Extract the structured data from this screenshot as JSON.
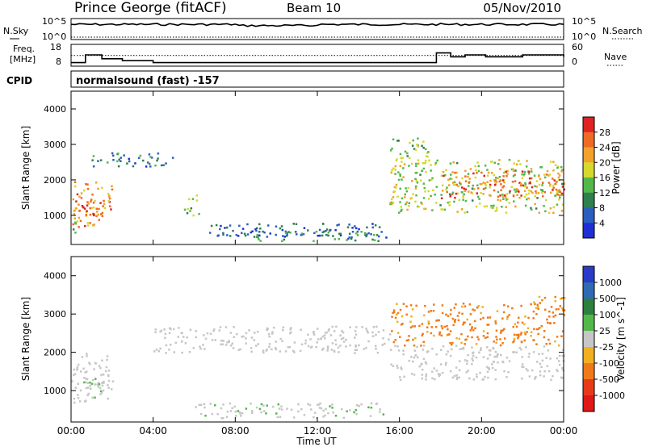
{
  "header": {
    "station": "Prince George (fitACF)",
    "beam": "Beam 10",
    "date": "05/Nov/2010"
  },
  "status_panels": {
    "nsky_label": "N.Sky",
    "nsky_ticks": [
      "10^5",
      "10^0"
    ],
    "nsearch_label": "N.Search",
    "nsearch_ticks": [
      "10^5",
      "10^0"
    ],
    "freq_label_1": "Freq.",
    "freq_label_2": "[MHz]",
    "freq_ticks": [
      "18",
      "8"
    ],
    "nave_label": "Nave",
    "nave_ticks": [
      "60",
      "0"
    ],
    "cpid_label": "CPID",
    "cpid_value": "normalsound (fast) -157"
  },
  "colors": {
    "power_scale": [
      "#1f2fd6",
      "#2b5fbf",
      "#2f7f4f",
      "#52b948",
      "#d7d82c",
      "#f2a12a",
      "#ef6a24",
      "#e02222"
    ],
    "velocity_scale": [
      "#2a3cc6",
      "#2f6ab3",
      "#2d7f3f",
      "#52b948",
      "#c6c6c6",
      "#f0b020",
      "#f07a1a",
      "#e83a1a",
      "#e01818"
    ]
  },
  "chart_data": [
    {
      "type": "line",
      "name": "N.Sky / N.Search",
      "x": [
        "00:00",
        "04:00",
        "08:00",
        "12:00",
        "16:00",
        "20:00",
        "00:00"
      ],
      "y_ticks_left": [
        "10^5",
        "10^0"
      ],
      "y_ticks_right": [
        "10^5",
        "10^0"
      ]
    },
    {
      "type": "line",
      "name": "Freq / Nave",
      "x": [
        "00:00",
        "04:00",
        "08:00",
        "12:00",
        "16:00",
        "20:00",
        "00:00"
      ],
      "freq_series": {
        "x_hours": [
          0,
          0.7,
          1.5,
          2.5,
          4,
          8,
          12,
          15,
          17.8,
          18.5,
          19.2,
          20.2,
          22,
          24
        ],
        "values": [
          9,
          13,
          11,
          10,
          9,
          9,
          9,
          9,
          14,
          12,
          13,
          12,
          13,
          12
        ]
      },
      "nave_series": {
        "x_hours": [
          0,
          24
        ],
        "values": [
          28,
          28
        ]
      },
      "freq_ylim": [
        8,
        18
      ],
      "nave_ylim": [
        0,
        60
      ]
    },
    {
      "type": "heatmap",
      "name": "Power",
      "xlabel": "",
      "ylabel": "Slant Range [km]",
      "x_ticks": [
        "00:00",
        "04:00",
        "08:00",
        "12:00",
        "16:00",
        "20:00",
        "00:00"
      ],
      "y_ticks": [
        "1000",
        "2000",
        "3000",
        "4000"
      ],
      "ylim": [
        180,
        4500
      ],
      "xlim_hours": [
        0,
        24
      ],
      "colorbar": {
        "label": "Power [dB]",
        "ticks": [
          "4",
          "8",
          "12",
          "16",
          "20",
          "24",
          "28"
        ],
        "range": [
          0,
          30
        ]
      },
      "regions": [
        {
          "t0": 0.0,
          "t1": 2.0,
          "r0": 700,
          "r1": 2000,
          "level": 22
        },
        {
          "t0": 0.2,
          "t1": 1.6,
          "r0": 1000,
          "r1": 1500,
          "level": 28
        },
        {
          "t0": 0.0,
          "t1": 0.5,
          "r0": 500,
          "r1": 900,
          "level": 14
        },
        {
          "t0": 1.0,
          "t1": 5.0,
          "r0": 2400,
          "r1": 2800,
          "level": 8
        },
        {
          "t0": 5.5,
          "t1": 6.2,
          "r0": 1000,
          "r1": 1600,
          "level": 14
        },
        {
          "t0": 6.5,
          "t1": 15.5,
          "r0": 400,
          "r1": 800,
          "level": 6
        },
        {
          "t0": 9.0,
          "t1": 15.0,
          "r0": 300,
          "r1": 600,
          "level": 10
        },
        {
          "t0": 15.5,
          "t1": 24.0,
          "r0": 1100,
          "r1": 2600,
          "level": 16
        },
        {
          "t0": 18.0,
          "t1": 24.0,
          "r0": 1500,
          "r1": 2300,
          "level": 24
        },
        {
          "t0": 15.5,
          "t1": 17.5,
          "r0": 2600,
          "r1": 3200,
          "level": 14
        }
      ]
    },
    {
      "type": "heatmap",
      "name": "Velocity",
      "xlabel": "Time UT",
      "ylabel": "Slant Range [km]",
      "x_ticks": [
        "00:00",
        "04:00",
        "08:00",
        "12:00",
        "16:00",
        "20:00",
        "00:00"
      ],
      "y_ticks": [
        "1000",
        "2000",
        "3000",
        "4000"
      ],
      "ylim": [
        180,
        4500
      ],
      "xlim_hours": [
        0,
        24
      ],
      "colorbar": {
        "label": "Velocity [m s^-1]",
        "ticks": [
          "1000",
          "500",
          "100",
          "25",
          "-25",
          "-100",
          "-500",
          "-1000"
        ],
        "range": [
          -1000,
          1000
        ]
      },
      "regions": [
        {
          "t0": 0.0,
          "t1": 2.0,
          "r0": 700,
          "r1": 2000,
          "level": 0
        },
        {
          "t0": 0.5,
          "t1": 1.5,
          "r0": 800,
          "r1": 1400,
          "level": 100
        },
        {
          "t0": 4.0,
          "t1": 15.5,
          "r0": 2000,
          "r1": 2700,
          "level": 0
        },
        {
          "t0": 6.0,
          "t1": 15.5,
          "r0": 300,
          "r1": 700,
          "level": 50
        },
        {
          "t0": 15.5,
          "t1": 24.0,
          "r0": 1300,
          "r1": 2200,
          "level": 0
        },
        {
          "t0": 15.5,
          "t1": 24.0,
          "r0": 2200,
          "r1": 3300,
          "level": -400
        },
        {
          "t0": 22.5,
          "t1": 24.0,
          "r0": 3100,
          "r1": 3500,
          "level": -300
        }
      ]
    }
  ]
}
